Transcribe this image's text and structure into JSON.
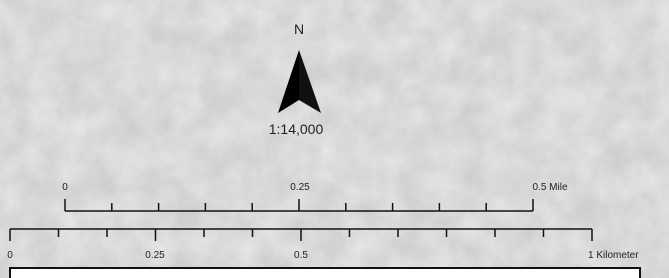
{
  "north_arrow": {
    "label": "N"
  },
  "scale": "1:14,000",
  "mile_bar": {
    "labels": [
      "0",
      "0.25",
      "0.5 Mile"
    ]
  },
  "km_bar": {
    "labels": [
      "0",
      "0.25",
      "0.5",
      "1 Kilometer"
    ]
  }
}
